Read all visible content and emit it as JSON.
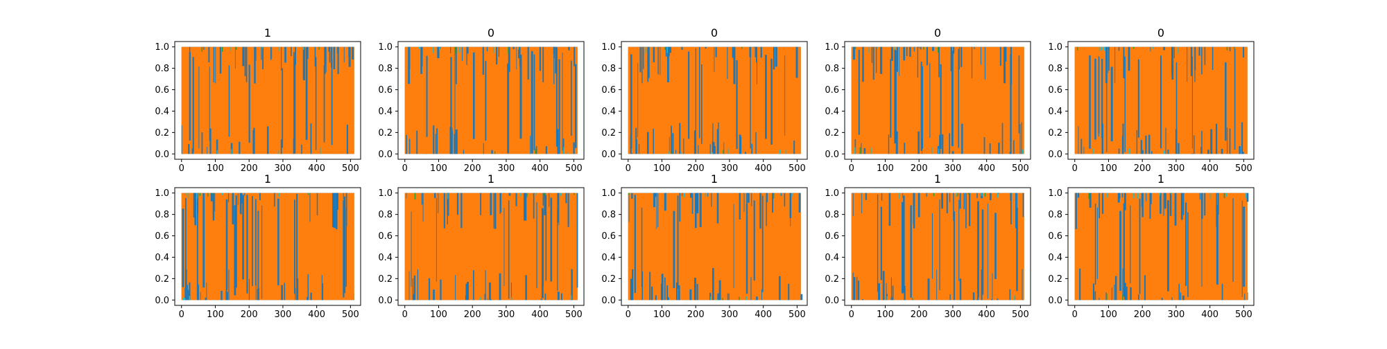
{
  "colors": {
    "series_a": "#1f77b4",
    "series_b": "#ff7f0e",
    "series_c": "#17becf",
    "series_d": "#2ca02c",
    "axes": "#000000",
    "background": "#ffffff"
  },
  "chart_data": [
    {
      "type": "line",
      "title": "1",
      "x": [
        0,
        511
      ],
      "xticks": [
        0,
        100,
        200,
        300,
        400,
        500
      ],
      "yticks": [
        "0.0",
        "0.2",
        "0.4",
        "0.6",
        "0.8",
        "1.0"
      ],
      "xlim": [
        -20,
        530
      ],
      "ylim": [
        -0.05,
        1.05
      ],
      "series": [
        {
          "values": [
            0.0,
            1.0
          ]
        },
        {
          "values": [
            0.0,
            1.0
          ]
        },
        {
          "values": [
            0.0,
            1.0
          ]
        }
      ],
      "xlabel": "",
      "ylabel": ""
    },
    {
      "type": "line",
      "title": "0",
      "x": [
        0,
        511
      ],
      "xticks": [
        0,
        100,
        200,
        300,
        400,
        500
      ],
      "yticks": [
        "0.0",
        "0.2",
        "0.4",
        "0.6",
        "0.8",
        "1.0"
      ],
      "xlim": [
        -20,
        530
      ],
      "ylim": [
        -0.05,
        1.05
      ],
      "series": [
        {
          "values": [
            0.0,
            1.0
          ]
        },
        {
          "values": [
            0.0,
            1.0
          ]
        },
        {
          "values": [
            0.0,
            1.0
          ]
        }
      ],
      "xlabel": "",
      "ylabel": ""
    },
    {
      "type": "line",
      "title": "0",
      "x": [
        0,
        511
      ],
      "xticks": [
        0,
        100,
        200,
        300,
        400,
        500
      ],
      "yticks": [
        "0.0",
        "0.2",
        "0.4",
        "0.6",
        "0.8",
        "1.0"
      ],
      "xlim": [
        -20,
        530
      ],
      "ylim": [
        -0.05,
        1.05
      ],
      "series": [
        {
          "values": [
            0.0,
            1.0
          ]
        },
        {
          "values": [
            0.0,
            1.0
          ]
        },
        {
          "values": [
            0.0,
            1.0
          ]
        }
      ],
      "xlabel": "",
      "ylabel": ""
    },
    {
      "type": "line",
      "title": "0",
      "x": [
        0,
        511
      ],
      "xticks": [
        0,
        100,
        200,
        300,
        400,
        500
      ],
      "yticks": [
        "0.0",
        "0.2",
        "0.4",
        "0.6",
        "0.8",
        "1.0"
      ],
      "xlim": [
        -20,
        530
      ],
      "ylim": [
        -0.05,
        1.05
      ],
      "series": [
        {
          "values": [
            0.0,
            1.0
          ]
        },
        {
          "values": [
            0.0,
            1.0
          ]
        },
        {
          "values": [
            0.0,
            1.0
          ]
        }
      ],
      "xlabel": "",
      "ylabel": ""
    },
    {
      "type": "line",
      "title": "0",
      "x": [
        0,
        511
      ],
      "xticks": [
        0,
        100,
        200,
        300,
        400,
        500
      ],
      "yticks": [
        "0.0",
        "0.2",
        "0.4",
        "0.6",
        "0.8",
        "1.0"
      ],
      "xlim": [
        -20,
        530
      ],
      "ylim": [
        -0.05,
        1.05
      ],
      "series": [
        {
          "values": [
            0.0,
            1.0
          ]
        },
        {
          "values": [
            0.0,
            1.0
          ]
        },
        {
          "values": [
            0.0,
            1.0
          ]
        }
      ],
      "xlabel": "",
      "ylabel": ""
    },
    {
      "type": "line",
      "title": "1",
      "x": [
        0,
        511
      ],
      "xticks": [
        0,
        100,
        200,
        300,
        400,
        500
      ],
      "yticks": [
        "0.0",
        "0.2",
        "0.4",
        "0.6",
        "0.8",
        "1.0"
      ],
      "xlim": [
        -20,
        530
      ],
      "ylim": [
        -0.05,
        1.05
      ],
      "series": [
        {
          "values": [
            0.0,
            1.0
          ]
        },
        {
          "values": [
            0.0,
            1.0
          ]
        },
        {
          "values": [
            0.0,
            1.0
          ]
        }
      ],
      "xlabel": "",
      "ylabel": ""
    },
    {
      "type": "line",
      "title": "1",
      "x": [
        0,
        511
      ],
      "xticks": [
        0,
        100,
        200,
        300,
        400,
        500
      ],
      "yticks": [
        "0.0",
        "0.2",
        "0.4",
        "0.6",
        "0.8",
        "1.0"
      ],
      "xlim": [
        -20,
        530
      ],
      "ylim": [
        -0.05,
        1.05
      ],
      "series": [
        {
          "values": [
            0.0,
            1.0
          ]
        },
        {
          "values": [
            0.0,
            1.0
          ]
        },
        {
          "values": [
            0.0,
            1.0
          ]
        }
      ],
      "xlabel": "",
      "ylabel": ""
    },
    {
      "type": "line",
      "title": "1",
      "x": [
        0,
        511
      ],
      "xticks": [
        0,
        100,
        200,
        300,
        400,
        500
      ],
      "yticks": [
        "0.0",
        "0.2",
        "0.4",
        "0.6",
        "0.8",
        "1.0"
      ],
      "xlim": [
        -20,
        530
      ],
      "ylim": [
        -0.05,
        1.05
      ],
      "series": [
        {
          "values": [
            0.0,
            1.0
          ]
        },
        {
          "values": [
            0.0,
            1.0
          ]
        },
        {
          "values": [
            0.0,
            1.0
          ]
        }
      ],
      "xlabel": "",
      "ylabel": ""
    },
    {
      "type": "line",
      "title": "1",
      "x": [
        0,
        511
      ],
      "xticks": [
        0,
        100,
        200,
        300,
        400,
        500
      ],
      "yticks": [
        "0.0",
        "0.2",
        "0.4",
        "0.6",
        "0.8",
        "1.0"
      ],
      "xlim": [
        -20,
        530
      ],
      "ylim": [
        -0.05,
        1.05
      ],
      "series": [
        {
          "values": [
            0.0,
            1.0
          ]
        },
        {
          "values": [
            0.0,
            1.0
          ]
        },
        {
          "values": [
            0.0,
            1.0
          ]
        }
      ],
      "xlabel": "",
      "ylabel": ""
    },
    {
      "type": "line",
      "title": "1",
      "x": [
        0,
        511
      ],
      "xticks": [
        0,
        100,
        200,
        300,
        400,
        500
      ],
      "yticks": [
        "0.0",
        "0.2",
        "0.4",
        "0.6",
        "0.8",
        "1.0"
      ],
      "xlim": [
        -20,
        530
      ],
      "ylim": [
        -0.05,
        1.05
      ],
      "series": [
        {
          "values": [
            0.0,
            1.0
          ]
        },
        {
          "values": [
            0.0,
            1.0
          ]
        },
        {
          "values": [
            0.0,
            1.0
          ]
        }
      ],
      "xlabel": "",
      "ylabel": ""
    }
  ]
}
